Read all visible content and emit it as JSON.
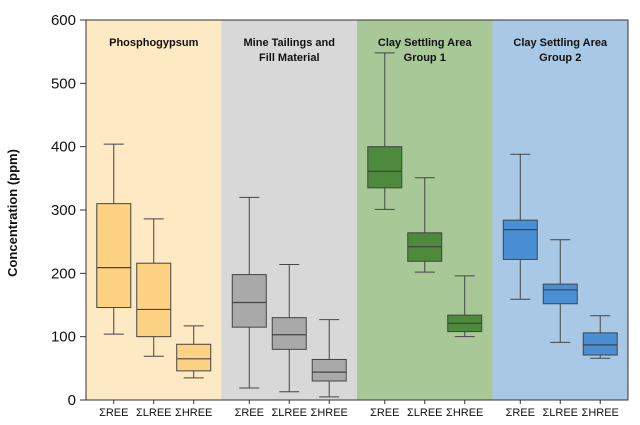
{
  "chart_data": {
    "type": "boxplot",
    "ylabel": "Concentration (ppm)",
    "ylim": [
      0,
      600
    ],
    "yticks": [
      0,
      100,
      200,
      300,
      400,
      500,
      600
    ],
    "categories": [
      "ΣREE",
      "ΣLREE",
      "ΣHREE"
    ],
    "groups": [
      {
        "name": "Phosphogypsum",
        "title_lines": [
          "Phosphogypsum"
        ],
        "panel_color": "#fde9c4",
        "box_fill": "#fdd383",
        "boxes": [
          {
            "category": "ΣREE",
            "min": 104,
            "q1": 146,
            "median": 209,
            "q3": 310,
            "max": 404
          },
          {
            "category": "ΣLREE",
            "min": 69,
            "q1": 100,
            "median": 143,
            "q3": 216,
            "max": 286
          },
          {
            "category": "ΣHREE",
            "min": 35,
            "q1": 46,
            "median": 65,
            "q3": 88,
            "max": 117
          }
        ]
      },
      {
        "name": "Mine Tailings and Fill Material",
        "title_lines": [
          "Mine Tailings and",
          "Fill Material"
        ],
        "panel_color": "#d8d8d8",
        "box_fill": "#a9a9a9",
        "boxes": [
          {
            "category": "ΣREE",
            "min": 19,
            "q1": 115,
            "median": 154,
            "q3": 198,
            "max": 320
          },
          {
            "category": "ΣLREE",
            "min": 13,
            "q1": 80,
            "median": 103,
            "q3": 130,
            "max": 214
          },
          {
            "category": "ΣHREE",
            "min": 5,
            "q1": 30,
            "median": 44,
            "q3": 64,
            "max": 127
          }
        ]
      },
      {
        "name": "Clay Settling Area Group 1",
        "title_lines": [
          "Clay Settling Area",
          "Group 1"
        ],
        "panel_color": "#a8c898",
        "box_fill": "#4d8a3d",
        "boxes": [
          {
            "category": "ΣREE",
            "min": 301,
            "q1": 335,
            "median": 361,
            "q3": 400,
            "max": 548
          },
          {
            "category": "ΣLREE",
            "min": 202,
            "q1": 219,
            "median": 242,
            "q3": 264,
            "max": 351
          },
          {
            "category": "ΣHREE",
            "min": 100,
            "q1": 108,
            "median": 121,
            "q3": 134,
            "max": 196
          }
        ]
      },
      {
        "name": "Clay Settling Area Group 2",
        "title_lines": [
          "Clay Settling Area",
          "Group 2"
        ],
        "panel_color": "#a9c8e6",
        "box_fill": "#4a8fd4",
        "boxes": [
          {
            "category": "ΣREE",
            "min": 159,
            "q1": 222,
            "median": 269,
            "q3": 284,
            "max": 388
          },
          {
            "category": "ΣLREE",
            "min": 91,
            "q1": 152,
            "median": 174,
            "q3": 183,
            "max": 253
          },
          {
            "category": "ΣHREE",
            "min": 66,
            "q1": 71,
            "median": 87,
            "q3": 106,
            "max": 133
          }
        ]
      }
    ]
  }
}
